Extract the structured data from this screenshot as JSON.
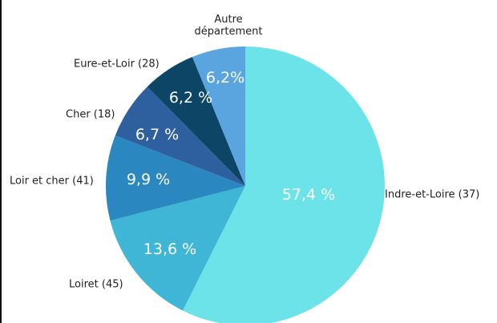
{
  "chart_data": {
    "type": "pie",
    "categories": [
      "Indre-et-Loire (37)",
      "Loiret (45)",
      "Loir et cher (41)",
      "Cher (18)",
      "Eure-et-Loir (28)",
      "Autre département"
    ],
    "values": [
      57.4,
      13.6,
      9.9,
      6.7,
      6.2,
      6.2
    ],
    "value_labels": [
      "57,4 %",
      "13,6 %",
      "9,9 %",
      "6,7 %",
      "6,2 %",
      "6,2%"
    ],
    "colors": [
      "#6ce3e8",
      "#3fb6d6",
      "#2a87c0",
      "#2e5f9e",
      "#0d4567",
      "#5aa5e0"
    ]
  }
}
